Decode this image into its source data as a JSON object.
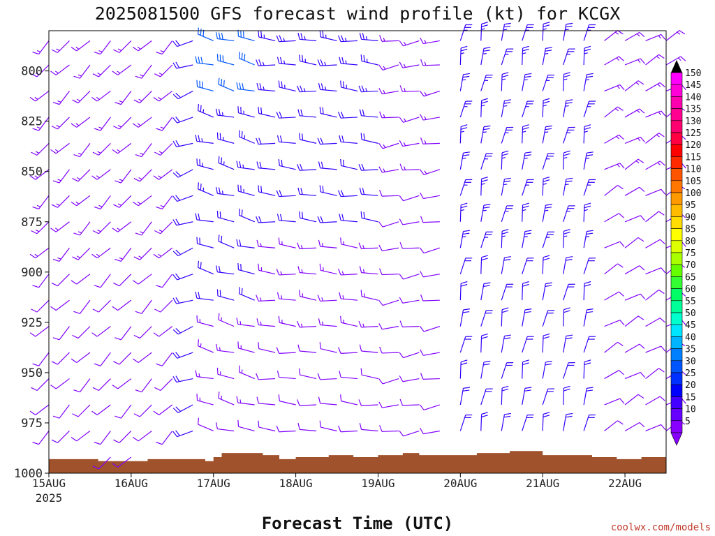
{
  "chart_data": {
    "type": "wind-barb-time-height",
    "title": "2025081500 GFS forecast wind profile (kt) for KCGX",
    "xlabel": "Forecast Time (UTC)",
    "ylabel": "",
    "credit": "coolwx.com/models",
    "x_ticks": [
      "15AUG",
      "16AUG",
      "17AUG",
      "18AUG",
      "19AUG",
      "20AUG",
      "21AUG",
      "22AUG"
    ],
    "x_year": "2025",
    "xlim_days": [
      0,
      7.5
    ],
    "y_ticks": [
      800,
      825,
      850,
      875,
      900,
      925,
      950,
      975,
      1000
    ],
    "y_tick_labels": [
      "800",
      "825",
      "850",
      "875",
      "900",
      "925",
      "950",
      "975",
      "1000"
    ],
    "ylim_hpa": [
      1000,
      780
    ],
    "time_step_hours": 6,
    "levels_hpa": [
      785,
      797,
      810,
      823,
      836,
      849,
      862,
      875,
      888,
      901,
      914,
      927,
      940,
      953,
      966,
      979,
      992
    ],
    "wind_periods": [
      {
        "from_day": 0.0,
        "to_day": 1.6,
        "dir_deg": 225,
        "speed_kt_upper": 15,
        "speed_kt_lower": 10
      },
      {
        "from_day": 1.6,
        "to_day": 2.0,
        "dir_deg": 250,
        "speed_kt_upper": 20,
        "speed_kt_lower": 20
      },
      {
        "from_day": 2.0,
        "to_day": 2.6,
        "dir_deg": 285,
        "speed_kt_upper": 30,
        "speed_kt_lower": 10
      },
      {
        "from_day": 2.6,
        "to_day": 4.2,
        "dir_deg": 275,
        "speed_kt_upper": 25,
        "speed_kt_lower": 8
      },
      {
        "from_day": 4.2,
        "to_day": 5.0,
        "dir_deg": 260,
        "speed_kt_upper": 15,
        "speed_kt_lower": 8
      },
      {
        "from_day": 5.0,
        "to_day": 6.6,
        "dir_deg": 10,
        "speed_kt_upper": 25,
        "speed_kt_lower": 20
      },
      {
        "from_day": 6.6,
        "to_day": 7.5,
        "dir_deg": 60,
        "speed_kt_upper": 15,
        "speed_kt_lower": 8
      }
    ],
    "terrain_pressure_hpa": [
      {
        "day": 0.0,
        "p": 993
      },
      {
        "day": 0.5,
        "p": 993
      },
      {
        "day": 0.6,
        "p": 994
      },
      {
        "day": 0.9,
        "p": 994
      },
      {
        "day": 1.2,
        "p": 993
      },
      {
        "day": 1.6,
        "p": 993
      },
      {
        "day": 1.9,
        "p": 994
      },
      {
        "day": 2.0,
        "p": 992
      },
      {
        "day": 2.1,
        "p": 990
      },
      {
        "day": 2.6,
        "p": 991
      },
      {
        "day": 2.8,
        "p": 993
      },
      {
        "day": 3.0,
        "p": 992
      },
      {
        "day": 3.4,
        "p": 991
      },
      {
        "day": 3.7,
        "p": 992
      },
      {
        "day": 4.0,
        "p": 991
      },
      {
        "day": 4.3,
        "p": 990
      },
      {
        "day": 4.5,
        "p": 991
      },
      {
        "day": 4.9,
        "p": 991
      },
      {
        "day": 5.2,
        "p": 990
      },
      {
        "day": 5.6,
        "p": 989
      },
      {
        "day": 6.0,
        "p": 991
      },
      {
        "day": 6.6,
        "p": 992
      },
      {
        "day": 6.9,
        "p": 993
      },
      {
        "day": 7.2,
        "p": 992
      },
      {
        "day": 7.5,
        "p": 992
      }
    ],
    "colorbar": {
      "labels": [
        "150",
        "145",
        "140",
        "135",
        "130",
        "125",
        "120",
        "115",
        "110",
        "105",
        "100",
        "95",
        "90",
        "85",
        "80",
        "75",
        "70",
        "65",
        "60",
        "55",
        "50",
        "45",
        "40",
        "35",
        "30",
        "25",
        "20",
        "15",
        "10",
        "5"
      ],
      "colors": [
        "#ff00ff",
        "#ff00d8",
        "#ff00b0",
        "#ff0090",
        "#ff0070",
        "#ff0040",
        "#ff0000",
        "#ff2a00",
        "#ff5500",
        "#ff7700",
        "#ff9900",
        "#ffbb00",
        "#ffdd00",
        "#ffff00",
        "#ddff00",
        "#aaff00",
        "#66ff00",
        "#33ff33",
        "#00ff66",
        "#00ff99",
        "#00ffcc",
        "#00e6ff",
        "#00b4ff",
        "#0080ff",
        "#0055ff",
        "#0030ff",
        "#0000ff",
        "#4400ff",
        "#6600ff",
        "#8800ff"
      ],
      "top_color": "#000000",
      "bottom_color": "#8800ff"
    },
    "colors": {
      "terrain": "#a0522d",
      "barb_light": "#8000ff",
      "barb_mid": "#3300ff",
      "barb_strong": "#0055ff",
      "credit": "#c0392b"
    }
  }
}
